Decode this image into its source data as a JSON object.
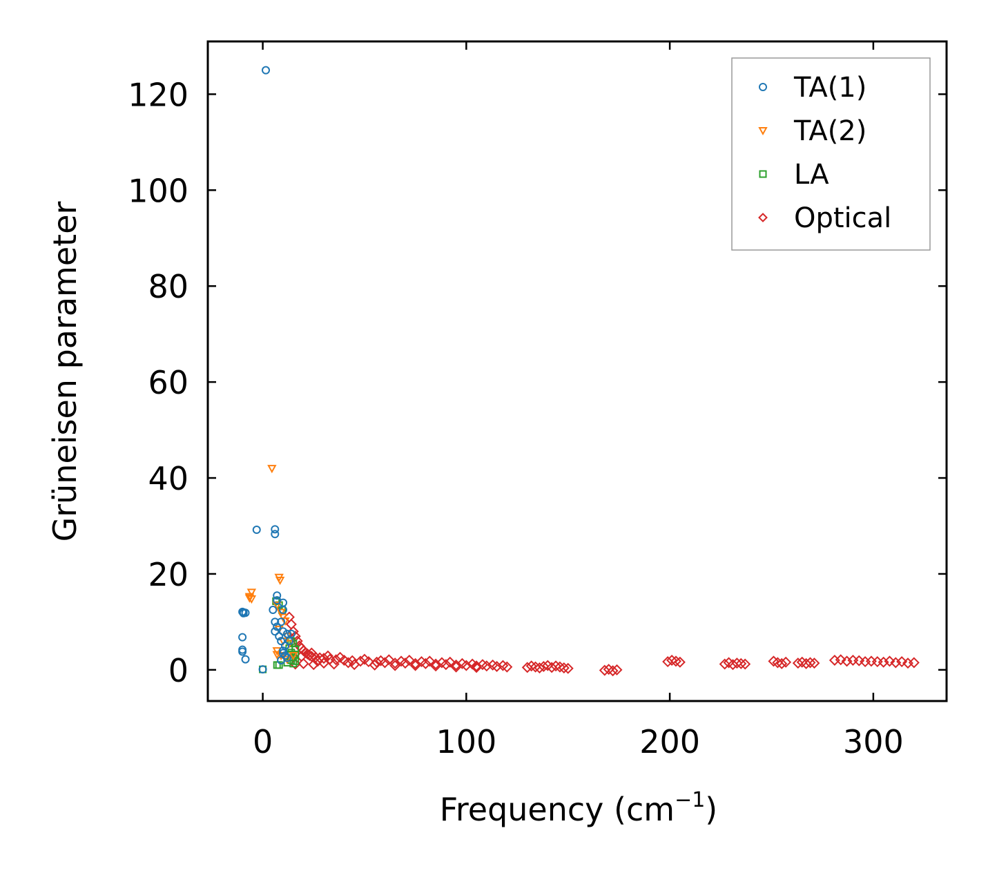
{
  "chart_data": {
    "type": "scatter",
    "xlabel": "Frequency (cm",
    "xlabel_sup": "−1",
    "xlabel_tail": ")",
    "ylabel": "Grüneisen parameter",
    "xlim": [
      -27,
      336
    ],
    "ylim": [
      -6.5,
      131
    ],
    "xticks": [
      0,
      100,
      200,
      300
    ],
    "xtick_labels": [
      "0",
      "100",
      "200",
      "300"
    ],
    "yticks": [
      0,
      20,
      40,
      60,
      80,
      100,
      120
    ],
    "ytick_labels": [
      "0",
      "20",
      "40",
      "60",
      "80",
      "100",
      "120"
    ],
    "tick_direction": "in",
    "grid": false,
    "legend_position": "top-right",
    "series": [
      {
        "name": "TA(1)",
        "marker": "circle",
        "color": "#1f77b4",
        "points": [
          [
            1.5,
            125
          ],
          [
            -3,
            29.2
          ],
          [
            6,
            29.3
          ],
          [
            6,
            28.3
          ],
          [
            -9.5,
            12
          ],
          [
            -8.5,
            11.9
          ],
          [
            -10,
            12.1
          ],
          [
            -9.5,
            11.8
          ],
          [
            -10,
            6.8
          ],
          [
            -10,
            4.2
          ],
          [
            -10,
            3.8
          ],
          [
            -8.5,
            2.2
          ],
          [
            0,
            0.1
          ],
          [
            7,
            15.5
          ],
          [
            7,
            14.5
          ],
          [
            10,
            14
          ],
          [
            5,
            12.5
          ],
          [
            10,
            12.5
          ],
          [
            6,
            10
          ],
          [
            9,
            10
          ],
          [
            7,
            9
          ],
          [
            6,
            8
          ],
          [
            10,
            8
          ],
          [
            12,
            7.5
          ],
          [
            14,
            7.5
          ],
          [
            9,
            6
          ],
          [
            11,
            5
          ],
          [
            13,
            6
          ],
          [
            10,
            4
          ],
          [
            10,
            3.5
          ],
          [
            11,
            3
          ],
          [
            9,
            2
          ],
          [
            12,
            2.5
          ],
          [
            8,
            7
          ]
        ]
      },
      {
        "name": "TA(2)",
        "marker": "triangle",
        "color": "#ff7f0e",
        "points": [
          [
            4.5,
            42
          ],
          [
            8,
            19.3
          ],
          [
            8.5,
            18.7
          ],
          [
            -5.5,
            16.2
          ],
          [
            -6.5,
            15.3
          ],
          [
            -6.5,
            15
          ],
          [
            -5.5,
            14.8
          ],
          [
            7,
            13.5
          ],
          [
            9,
            12
          ],
          [
            10,
            11
          ],
          [
            11,
            10.2
          ],
          [
            8,
            8.5
          ],
          [
            12,
            7
          ],
          [
            10,
            6
          ],
          [
            13,
            5.5
          ],
          [
            7,
            4
          ],
          [
            7,
            3.2
          ],
          [
            9,
            3
          ],
          [
            15,
            3
          ],
          [
            12,
            2.2
          ]
        ]
      },
      {
        "name": "LA",
        "marker": "square",
        "color": "#2ca02c",
        "points": [
          [
            0,
            0.1
          ],
          [
            6.5,
            14.3
          ],
          [
            8,
            13.5
          ],
          [
            9.5,
            12.5
          ],
          [
            14,
            6
          ],
          [
            15,
            5.5
          ],
          [
            13,
            4.5
          ],
          [
            16,
            4.3
          ],
          [
            14,
            3.6
          ],
          [
            16,
            3.2
          ],
          [
            15,
            2.6
          ],
          [
            14,
            2
          ],
          [
            16,
            1.8
          ],
          [
            15,
            1.3
          ],
          [
            12,
            1.5
          ],
          [
            8,
            1
          ],
          [
            7,
            1
          ]
        ]
      },
      {
        "name": "Optical",
        "marker": "diamond",
        "color": "#d62728",
        "points": [
          [
            13,
            11
          ],
          [
            14,
            9.5
          ],
          [
            15,
            8
          ],
          [
            16,
            7
          ],
          [
            17,
            6
          ],
          [
            18,
            5
          ],
          [
            19,
            4.5
          ],
          [
            20,
            4
          ],
          [
            21,
            3.6
          ],
          [
            22,
            3.3
          ],
          [
            23,
            3
          ],
          [
            24,
            2.8
          ],
          [
            26,
            2.6
          ],
          [
            28,
            2.5
          ],
          [
            30,
            2.4
          ],
          [
            33,
            2.2
          ],
          [
            36,
            2.1
          ],
          [
            40,
            2
          ],
          [
            44,
            1.9
          ],
          [
            48,
            1.8
          ],
          [
            52,
            1.7
          ],
          [
            56,
            1.6
          ],
          [
            60,
            1.5
          ],
          [
            65,
            1.4
          ],
          [
            70,
            1.4
          ],
          [
            75,
            1.3
          ],
          [
            80,
            1.3
          ],
          [
            85,
            1.2
          ],
          [
            90,
            1.1
          ],
          [
            95,
            1
          ],
          [
            100,
            0.9
          ],
          [
            105,
            0.8
          ],
          [
            110,
            0.8
          ],
          [
            115,
            0.7
          ],
          [
            120,
            0.6
          ],
          [
            16,
            1.2
          ],
          [
            20,
            1.3
          ],
          [
            25,
            1.1
          ],
          [
            30,
            1.4
          ],
          [
            35,
            1.2
          ],
          [
            45,
            1.1
          ],
          [
            55,
            1
          ],
          [
            65,
            0.9
          ],
          [
            75,
            0.9
          ],
          [
            85,
            0.8
          ],
          [
            95,
            0.6
          ],
          [
            105,
            0.5
          ],
          [
            19,
            2.8
          ],
          [
            24,
            3.5
          ],
          [
            27,
            1.8
          ],
          [
            32,
            2.9
          ],
          [
            38,
            2.6
          ],
          [
            42,
            1.5
          ],
          [
            50,
            2.2
          ],
          [
            58,
            1.9
          ],
          [
            62,
            2.1
          ],
          [
            68,
            1.8
          ],
          [
            72,
            2
          ],
          [
            78,
            1.7
          ],
          [
            82,
            1.8
          ],
          [
            88,
            1.5
          ],
          [
            92,
            1.6
          ],
          [
            98,
            1.3
          ],
          [
            103,
            1.2
          ],
          [
            108,
            1.1
          ],
          [
            113,
            1
          ],
          [
            118,
            0.9
          ],
          [
            130,
            0.5
          ],
          [
            132,
            0.8
          ],
          [
            134,
            0.6
          ],
          [
            136,
            0.4
          ],
          [
            138,
            0.7
          ],
          [
            140,
            0.9
          ],
          [
            142,
            0.5
          ],
          [
            144,
            0.8
          ],
          [
            146,
            0.6
          ],
          [
            148,
            0.4
          ],
          [
            150,
            0.3
          ],
          [
            168,
            -0.1
          ],
          [
            170,
            0.1
          ],
          [
            172,
            -0.2
          ],
          [
            174,
            0
          ],
          [
            199,
            1.7
          ],
          [
            201,
            2
          ],
          [
            203,
            1.8
          ],
          [
            205,
            1.6
          ],
          [
            227,
            1.2
          ],
          [
            229,
            1.5
          ],
          [
            231,
            1.1
          ],
          [
            233,
            1.4
          ],
          [
            235,
            1.3
          ],
          [
            237,
            1.2
          ],
          [
            251,
            1.8
          ],
          [
            253,
            1.5
          ],
          [
            255,
            1.3
          ],
          [
            257,
            1.6
          ],
          [
            263,
            1.4
          ],
          [
            265,
            1.6
          ],
          [
            267,
            1.3
          ],
          [
            269,
            1.5
          ],
          [
            271,
            1.4
          ],
          [
            281,
            2
          ],
          [
            284,
            2.1
          ],
          [
            287,
            1.8
          ],
          [
            290,
            2
          ],
          [
            293,
            1.9
          ],
          [
            296,
            1.7
          ],
          [
            299,
            1.8
          ],
          [
            302,
            1.7
          ],
          [
            305,
            1.6
          ],
          [
            308,
            1.8
          ],
          [
            311,
            1.5
          ],
          [
            314,
            1.7
          ],
          [
            317,
            1.4
          ],
          [
            320,
            1.5
          ]
        ]
      }
    ]
  }
}
